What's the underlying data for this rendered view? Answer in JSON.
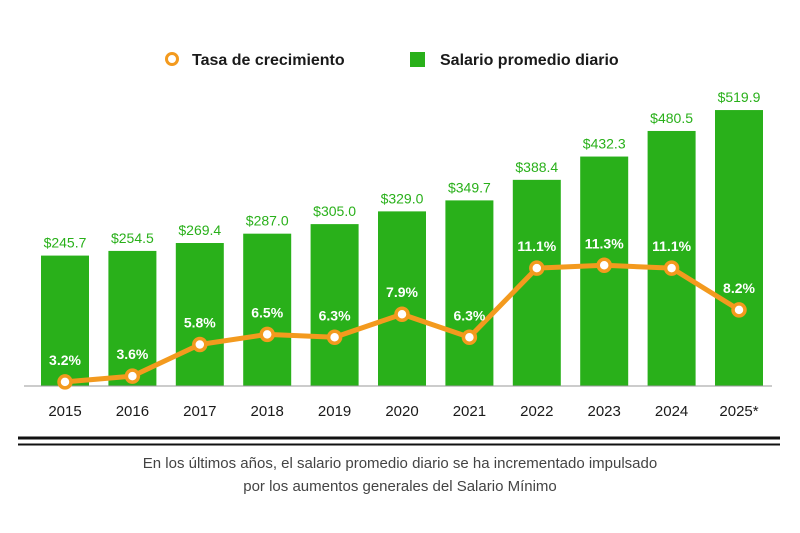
{
  "chart_data": {
    "type": "bar",
    "categories": [
      "2015",
      "2016",
      "2017",
      "2018",
      "2019",
      "2020",
      "2021",
      "2022",
      "2023",
      "2024",
      "2025*"
    ],
    "series": [
      {
        "name": "Salario promedio diario",
        "type": "bar",
        "values": [
          245.7,
          254.5,
          269.4,
          287.0,
          305.0,
          329.0,
          349.7,
          388.4,
          432.3,
          480.5,
          519.9
        ],
        "labels": [
          "$245.7",
          "$254.5",
          "$269.4",
          "$287.0",
          "$305.0",
          "$329.0",
          "$349.7",
          "$388.4",
          "$432.3",
          "$480.5",
          "$519.9"
        ],
        "color": "#29b01a"
      },
      {
        "name": "Tasa de crecimiento",
        "type": "line",
        "values": [
          3.2,
          3.6,
          5.8,
          6.5,
          6.3,
          7.9,
          6.3,
          11.1,
          11.3,
          11.1,
          8.2
        ],
        "labels": [
          "3.2%",
          "3.6%",
          "5.8%",
          "6.5%",
          "6.3%",
          "7.9%",
          "6.3%",
          "11.1%",
          "11.3%",
          "11.1%",
          "8.2%"
        ],
        "color": "#f39a1e"
      }
    ],
    "legend": [
      {
        "label": "Tasa de crecimiento",
        "marker": "circle-outline",
        "color": "#f39a1e"
      },
      {
        "label": "Salario promedio diario",
        "marker": "square",
        "color": "#29b01a"
      }
    ],
    "legend_position": "top-center",
    "bar_ylim": [
      0,
      520
    ],
    "rate_ylim": [
      0,
      20
    ],
    "grid": false
  },
  "caption": {
    "line1": "En los últimos años, el salario promedio diario se ha incrementado impulsado",
    "line2": "por los aumentos generales del Salario Mínimo"
  }
}
